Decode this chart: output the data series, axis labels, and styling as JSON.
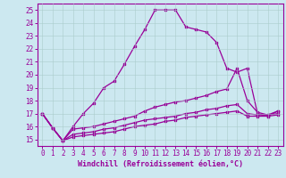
{
  "xlabel": "Windchill (Refroidissement éolien,°C)",
  "xlim": [
    -0.5,
    23.5
  ],
  "ylim": [
    14.5,
    25.5
  ],
  "yticks": [
    15,
    16,
    17,
    18,
    19,
    20,
    21,
    22,
    23,
    24,
    25
  ],
  "xticks": [
    0,
    1,
    2,
    3,
    4,
    5,
    6,
    7,
    8,
    9,
    10,
    11,
    12,
    13,
    14,
    15,
    16,
    17,
    18,
    19,
    20,
    21,
    22,
    23
  ],
  "background_color": "#cce8f0",
  "grid_color": "#aacccc",
  "line_color": "#990099",
  "line1_x": [
    0,
    1,
    2,
    3,
    4,
    5,
    6,
    7,
    8,
    9,
    10,
    11,
    12,
    13,
    14,
    15,
    16,
    17,
    18,
    19,
    20,
    21,
    22,
    23
  ],
  "line1_y": [
    17.0,
    15.9,
    14.9,
    16.0,
    17.0,
    17.8,
    19.0,
    19.5,
    20.8,
    22.2,
    23.5,
    25.0,
    25.0,
    25.0,
    23.7,
    23.5,
    23.3,
    22.5,
    20.5,
    20.2,
    20.5,
    17.0,
    16.8,
    17.2
  ],
  "line2_x": [
    0,
    1,
    2,
    3,
    4,
    5,
    6,
    7,
    8,
    9,
    10,
    11,
    12,
    13,
    14,
    15,
    16,
    17,
    18,
    19,
    20,
    21,
    22,
    23
  ],
  "line2_y": [
    17.0,
    15.9,
    14.9,
    15.8,
    15.9,
    16.0,
    16.2,
    16.4,
    16.6,
    16.8,
    17.2,
    17.5,
    17.7,
    17.9,
    18.0,
    18.2,
    18.4,
    18.7,
    18.9,
    20.5,
    18.0,
    17.1,
    16.9,
    17.2
  ],
  "line3_x": [
    0,
    1,
    2,
    3,
    4,
    5,
    6,
    7,
    8,
    9,
    10,
    11,
    12,
    13,
    14,
    15,
    16,
    17,
    18,
    19,
    20,
    21,
    22,
    23
  ],
  "line3_y": [
    17.0,
    15.9,
    14.9,
    15.4,
    15.5,
    15.6,
    15.8,
    15.9,
    16.1,
    16.3,
    16.5,
    16.6,
    16.7,
    16.8,
    17.0,
    17.1,
    17.3,
    17.4,
    17.6,
    17.7,
    17.0,
    16.9,
    16.9,
    17.0
  ],
  "line4_x": [
    0,
    1,
    2,
    3,
    4,
    5,
    6,
    7,
    8,
    9,
    10,
    11,
    12,
    13,
    14,
    15,
    16,
    17,
    18,
    19,
    20,
    21,
    22,
    23
  ],
  "line4_y": [
    17.0,
    15.9,
    14.9,
    15.2,
    15.3,
    15.4,
    15.5,
    15.6,
    15.8,
    16.0,
    16.1,
    16.2,
    16.4,
    16.5,
    16.7,
    16.8,
    16.9,
    17.0,
    17.1,
    17.2,
    16.8,
    16.8,
    16.8,
    16.9
  ]
}
